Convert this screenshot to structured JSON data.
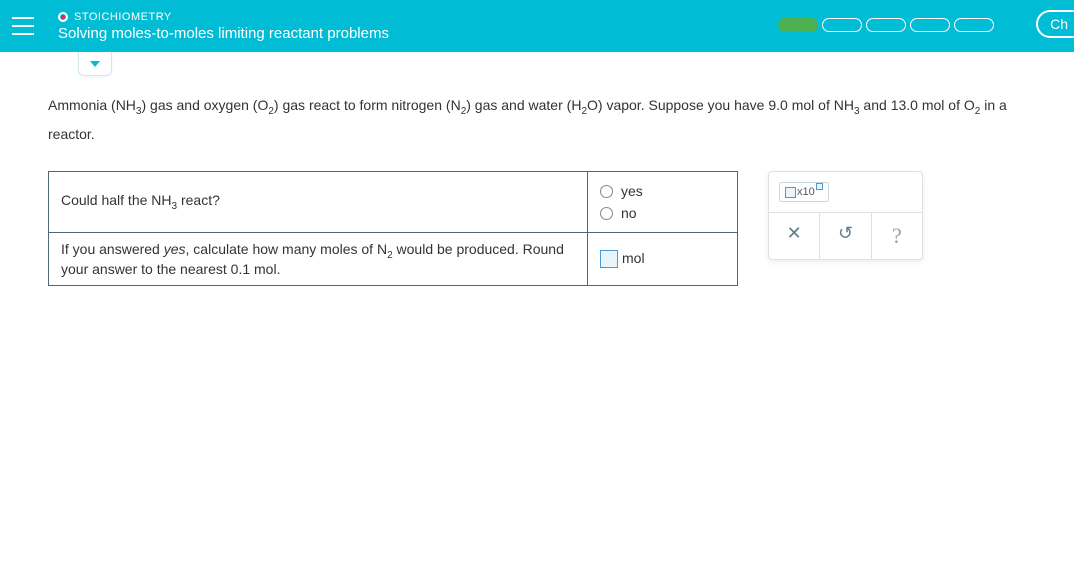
{
  "header": {
    "chapter": "STOICHIOMETRY",
    "subtitle": "Solving moles-to-moles limiting reactant problems",
    "right_label": "Ch",
    "progress_segments": 5,
    "progress_filled": 1
  },
  "problem": {
    "text_parts": {
      "p1": "Ammonia ",
      "f1a": "(NH",
      "f1b": ")",
      "p2": " gas and oxygen ",
      "f2a": "(O",
      "f2b": ")",
      "p3": " gas react to form nitrogen ",
      "f3a": "(N",
      "f3b": ")",
      "p4": " gas and water ",
      "f4a": "(H",
      "f4b": "O)",
      "p5": " vapor. Suppose you have ",
      "v1": "9.0 mol",
      "p6": " of ",
      "s1": "NH",
      "p7": " and ",
      "v2": "13.0 mol",
      "p8": " of ",
      "s2": "O",
      "p9": " in a reactor."
    },
    "sub3": "3",
    "sub2": "2"
  },
  "table": {
    "q1_a": "Could half the ",
    "q1_f": "NH",
    "q1_b": " react?",
    "yes": "yes",
    "no": "no",
    "q2_a": "If you answered ",
    "q2_i": "yes",
    "q2_b": ", calculate how many moles of ",
    "q2_f": "N",
    "q2_c": " would be produced. Round your answer to the nearest ",
    "q2_v": "0.1 mol",
    "q2_d": ".",
    "unit": "mol"
  },
  "toolbox": {
    "sci_label": "x10",
    "clear": "✕",
    "reset": "↺",
    "help": "?"
  }
}
